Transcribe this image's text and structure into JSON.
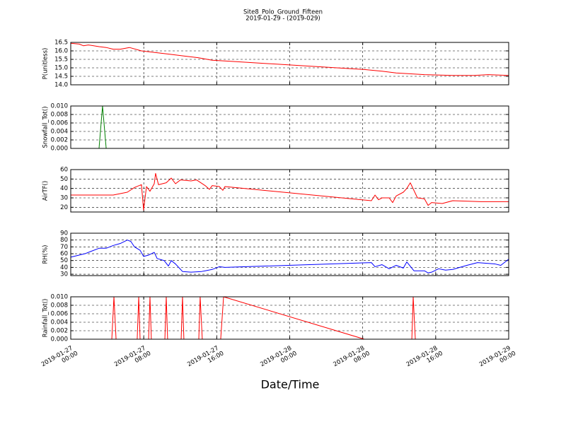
{
  "chart_data": [
    {
      "type": "line",
      "title": "Site8_Polo_Ground_Fifteen",
      "subtitle": "2019-01-29 - (2019-029)",
      "ylabel": "P(unitless)",
      "ylim": [
        14.0,
        16.5
      ],
      "yticks": [
        {
          "value": 14.0,
          "label": "14.0"
        },
        14.5,
        {
          "value": 15.0,
          "label": "15.0"
        },
        15.5,
        {
          "value": 16.0,
          "label": "16.0"
        },
        16.5
      ],
      "grid": true,
      "series": [
        {
          "name": "P",
          "color": "#ff0000",
          "x": [
            "2019-01-27 00:00",
            "2019-01-27 00:56",
            "2019-01-27 01:24",
            "2019-01-27 01:56",
            "2019-01-27 03:06",
            "2019-01-27 03:53",
            "2019-01-27 04:39",
            "2019-01-27 05:26",
            "2019-01-27 06:26",
            "2019-01-27 07:45",
            "2019-01-27 09:18",
            "2019-01-27 10:51",
            "2019-01-27 12:24",
            "2019-01-27 13:57",
            "2019-01-27 15:30",
            "2019-01-27 17:03",
            "2019-01-28 08:11",
            "2019-01-28 10:07",
            "2019-01-28 11:40",
            "2019-01-28 14:46",
            "2019-01-28 17:52",
            "2019-01-28 20:12",
            "2019-01-28 21:45",
            "2019-01-29 00:00"
          ],
          "values": [
            16.45,
            16.4,
            16.3,
            16.35,
            16.25,
            16.2,
            16.1,
            16.1,
            16.2,
            16.0,
            15.9,
            15.8,
            15.7,
            15.6,
            15.45,
            15.4,
            14.9,
            14.8,
            14.7,
            14.6,
            14.55,
            14.55,
            14.6,
            14.55
          ]
        }
      ]
    },
    {
      "type": "line",
      "ylabel": "Snowfall_Tot()",
      "ylim": [
        0,
        0.01
      ],
      "yticks": [
        {
          "value": 0,
          "label": "0.000"
        },
        {
          "value": 0.002,
          "label": "0.002"
        },
        {
          "value": 0.004,
          "label": "0.004"
        },
        {
          "value": 0.006,
          "label": "0.006"
        },
        {
          "value": 0.008,
          "label": "0.008"
        },
        {
          "value": 0.01,
          "label": "0.010"
        }
      ],
      "grid": true,
      "series": [
        {
          "name": "Snowfall_Tot",
          "color": "#007f00",
          "x": [
            "2019-01-27 00:00",
            "2019-01-27 03:06",
            "2019-01-27 03:29",
            "2019-01-27 03:53",
            "2019-01-27 16:55",
            "2019-01-28 00:00",
            "2019-01-28 08:11",
            "2019-01-29 00:00"
          ],
          "values": [
            0,
            0,
            0.01,
            0,
            0,
            null,
            0,
            0
          ]
        }
      ]
    },
    {
      "type": "line",
      "ylabel": "AirTF()",
      "ylim": [
        15,
        60
      ],
      "yticks": [
        20,
        30,
        40,
        50,
        60
      ],
      "grid": true,
      "series": [
        {
          "name": "AirTF",
          "color": "#ff0000",
          "x": [
            "2019-01-27 00:00",
            "2019-01-27 04:39",
            "2019-01-27 06:12",
            "2019-01-27 06:59",
            "2019-01-27 07:45",
            "2019-01-27 07:59",
            "2019-01-27 08:18",
            "2019-01-27 08:41",
            "2019-01-27 09:09",
            "2019-01-27 09:18",
            "2019-01-27 09:37",
            "2019-01-27 10:28",
            "2019-01-27 11:01",
            "2019-01-27 11:29",
            "2019-01-27 12:01",
            "2019-01-27 13:11",
            "2019-01-27 13:48",
            "2019-01-27 14:44",
            "2019-01-27 15:12",
            "2019-01-27 15:30",
            "2019-01-27 16:17",
            "2019-01-27 16:40",
            "2019-01-27 16:54",
            "2019-01-28 08:57",
            "2019-01-28 09:21",
            "2019-01-28 09:44",
            "2019-01-28 10:07",
            "2019-01-28 10:54",
            "2019-01-28 11:17",
            "2019-01-28 11:40",
            "2019-01-28 12:27",
            "2019-01-28 12:50",
            "2019-01-28 13:13",
            "2019-01-28 14:00",
            "2019-01-28 14:46",
            "2019-01-28 15:10",
            "2019-01-28 15:33",
            "2019-01-28 16:43",
            "2019-01-28 17:52",
            "2019-01-28 20:58",
            "2019-01-29 00:00"
          ],
          "values": [
            33,
            33,
            36,
            41,
            44,
            17,
            42,
            37,
            45,
            56,
            44,
            46,
            51,
            45,
            49,
            48,
            49,
            43,
            39,
            43,
            42,
            38,
            42,
            27,
            33,
            28,
            30,
            30,
            25,
            32,
            36,
            40,
            46,
            30,
            29,
            22,
            25,
            24,
            27,
            26,
            26
          ]
        }
      ]
    },
    {
      "type": "line",
      "ylabel": "RH(%)",
      "ylim": [
        28,
        90
      ],
      "yticks": [
        30,
        40,
        50,
        60,
        70,
        80,
        90
      ],
      "grid": true,
      "series": [
        {
          "name": "RH",
          "color": "#0000ff",
          "x": [
            "2019-01-27 00:00",
            "2019-01-27 01:33",
            "2019-01-27 03:06",
            "2019-01-27 03:53",
            "2019-01-27 04:39",
            "2019-01-27 05:26",
            "2019-01-27 06:12",
            "2019-01-27 06:35",
            "2019-01-27 06:59",
            "2019-01-27 07:36",
            "2019-01-27 07:59",
            "2019-01-27 08:32",
            "2019-01-27 09:09",
            "2019-01-27 09:28",
            "2019-01-27 10:14",
            "2019-01-27 10:42",
            "2019-01-27 11:01",
            "2019-01-27 11:29",
            "2019-01-27 12:15",
            "2019-01-27 13:11",
            "2019-01-27 14:21",
            "2019-01-27 14:44",
            "2019-01-27 15:30",
            "2019-01-27 16:17",
            "2019-01-27 16:54",
            "2019-01-28 08:57",
            "2019-01-28 09:21",
            "2019-01-28 10:07",
            "2019-01-28 10:54",
            "2019-01-28 11:40",
            "2019-01-28 12:27",
            "2019-01-28 12:50",
            "2019-01-28 13:37",
            "2019-01-28 14:46",
            "2019-01-28 15:10",
            "2019-01-28 15:33",
            "2019-01-28 16:19",
            "2019-01-28 17:05",
            "2019-01-28 17:52",
            "2019-01-28 19:25",
            "2019-01-28 20:35",
            "2019-01-28 22:31",
            "2019-01-28 23:08",
            "2019-01-29 00:00"
          ],
          "values": [
            55,
            60,
            68,
            68,
            72,
            75,
            80,
            78,
            70,
            65,
            56,
            58,
            62,
            53,
            50,
            42,
            50,
            45,
            34,
            33,
            34,
            35,
            37,
            41,
            40,
            47,
            41,
            44,
            38,
            43,
            39,
            48,
            35,
            35,
            32,
            33,
            38,
            36,
            37,
            43,
            47,
            45,
            43,
            52
          ]
        }
      ]
    },
    {
      "type": "line",
      "ylabel": "Rainfall_Tot()",
      "xlabel": "Date/Time",
      "ylim": [
        0,
        0.01
      ],
      "yticks": [
        {
          "value": 0,
          "label": "0.000"
        },
        {
          "value": 0.002,
          "label": "0.002"
        },
        {
          "value": 0.004,
          "label": "0.004"
        },
        {
          "value": 0.006,
          "label": "0.006"
        },
        {
          "value": 0.008,
          "label": "0.008"
        },
        {
          "value": 0.01,
          "label": "0.010"
        }
      ],
      "xlim": [
        "2019-01-27 00:00",
        "2019-01-29 00:00"
      ],
      "xticks": [
        "2019-01-27 00:00",
        "2019-01-27 08:00",
        "2019-01-27 16:00",
        "2019-01-28 00:00",
        "2019-01-28 08:00",
        "2019-01-28 16:00",
        "2019-01-29 00:00"
      ],
      "grid": true,
      "series": [
        {
          "name": "Rainfall_Tot",
          "color": "#ff0000",
          "x": [
            "2019-01-27 00:00",
            "2019-01-27 04:30",
            "2019-01-27 04:44",
            "2019-01-27 04:58",
            "2019-01-27 07:17",
            "2019-01-27 07:27",
            "2019-01-27 07:36",
            "2019-01-27 08:32",
            "2019-01-27 08:41",
            "2019-01-27 08:50",
            "2019-01-27 10:19",
            "2019-01-27 10:28",
            "2019-01-27 10:37",
            "2019-01-27 12:06",
            "2019-01-27 12:15",
            "2019-01-27 12:24",
            "2019-01-27 14:02",
            "2019-01-27 14:11",
            "2019-01-27 14:25",
            "2019-01-27 16:26",
            "2019-01-27 16:45",
            "2019-01-28 08:11",
            "2019-01-28 13:23",
            "2019-01-28 13:32",
            "2019-01-28 13:46",
            "2019-01-29 00:00"
          ],
          "values": [
            0,
            0,
            0.01,
            0,
            0,
            0.01,
            0,
            0,
            0.01,
            0,
            0,
            0.01,
            0,
            0,
            0.01,
            0,
            0,
            0.01,
            0,
            0,
            0.01,
            0,
            0,
            0.01,
            0,
            0
          ]
        }
      ]
    }
  ]
}
